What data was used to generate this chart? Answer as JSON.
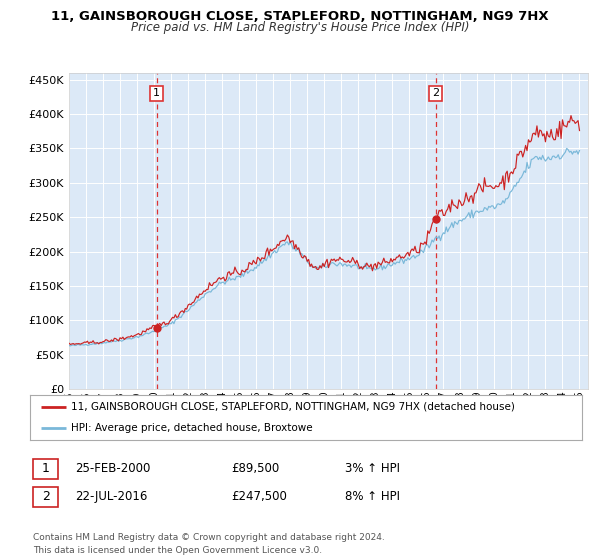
{
  "title1": "11, GAINSBOROUGH CLOSE, STAPLEFORD, NOTTINGHAM, NG9 7HX",
  "title2": "Price paid vs. HM Land Registry's House Price Index (HPI)",
  "background_color": "#ffffff",
  "plot_bg": "#dce9f7",
  "ylim": [
    0,
    460000
  ],
  "yticks": [
    0,
    50000,
    100000,
    150000,
    200000,
    250000,
    300000,
    350000,
    400000,
    450000
  ],
  "year_start": 1995,
  "year_end": 2025,
  "sale1_year": 2000.15,
  "sale1_price": 89500,
  "sale2_year": 2016.55,
  "sale2_price": 247500,
  "sale1_label": "1",
  "sale2_label": "2",
  "legend_line1": "11, GAINSBOROUGH CLOSE, STAPLEFORD, NOTTINGHAM, NG9 7HX (detached house)",
  "legend_line2": "HPI: Average price, detached house, Broxtowe",
  "table_row1_num": "1",
  "table_row1_date": "25-FEB-2000",
  "table_row1_price": "£89,500",
  "table_row1_hpi": "3% ↑ HPI",
  "table_row2_num": "2",
  "table_row2_date": "22-JUL-2016",
  "table_row2_price": "£247,500",
  "table_row2_hpi": "8% ↑ HPI",
  "footer": "Contains HM Land Registry data © Crown copyright and database right 2024.\nThis data is licensed under the Open Government Licence v3.0.",
  "hpi_color": "#7ab8d9",
  "price_color": "#cc2222",
  "dashed_line_color": "#dd3333",
  "marker_color": "#cc2222",
  "grid_color": "#ffffff"
}
